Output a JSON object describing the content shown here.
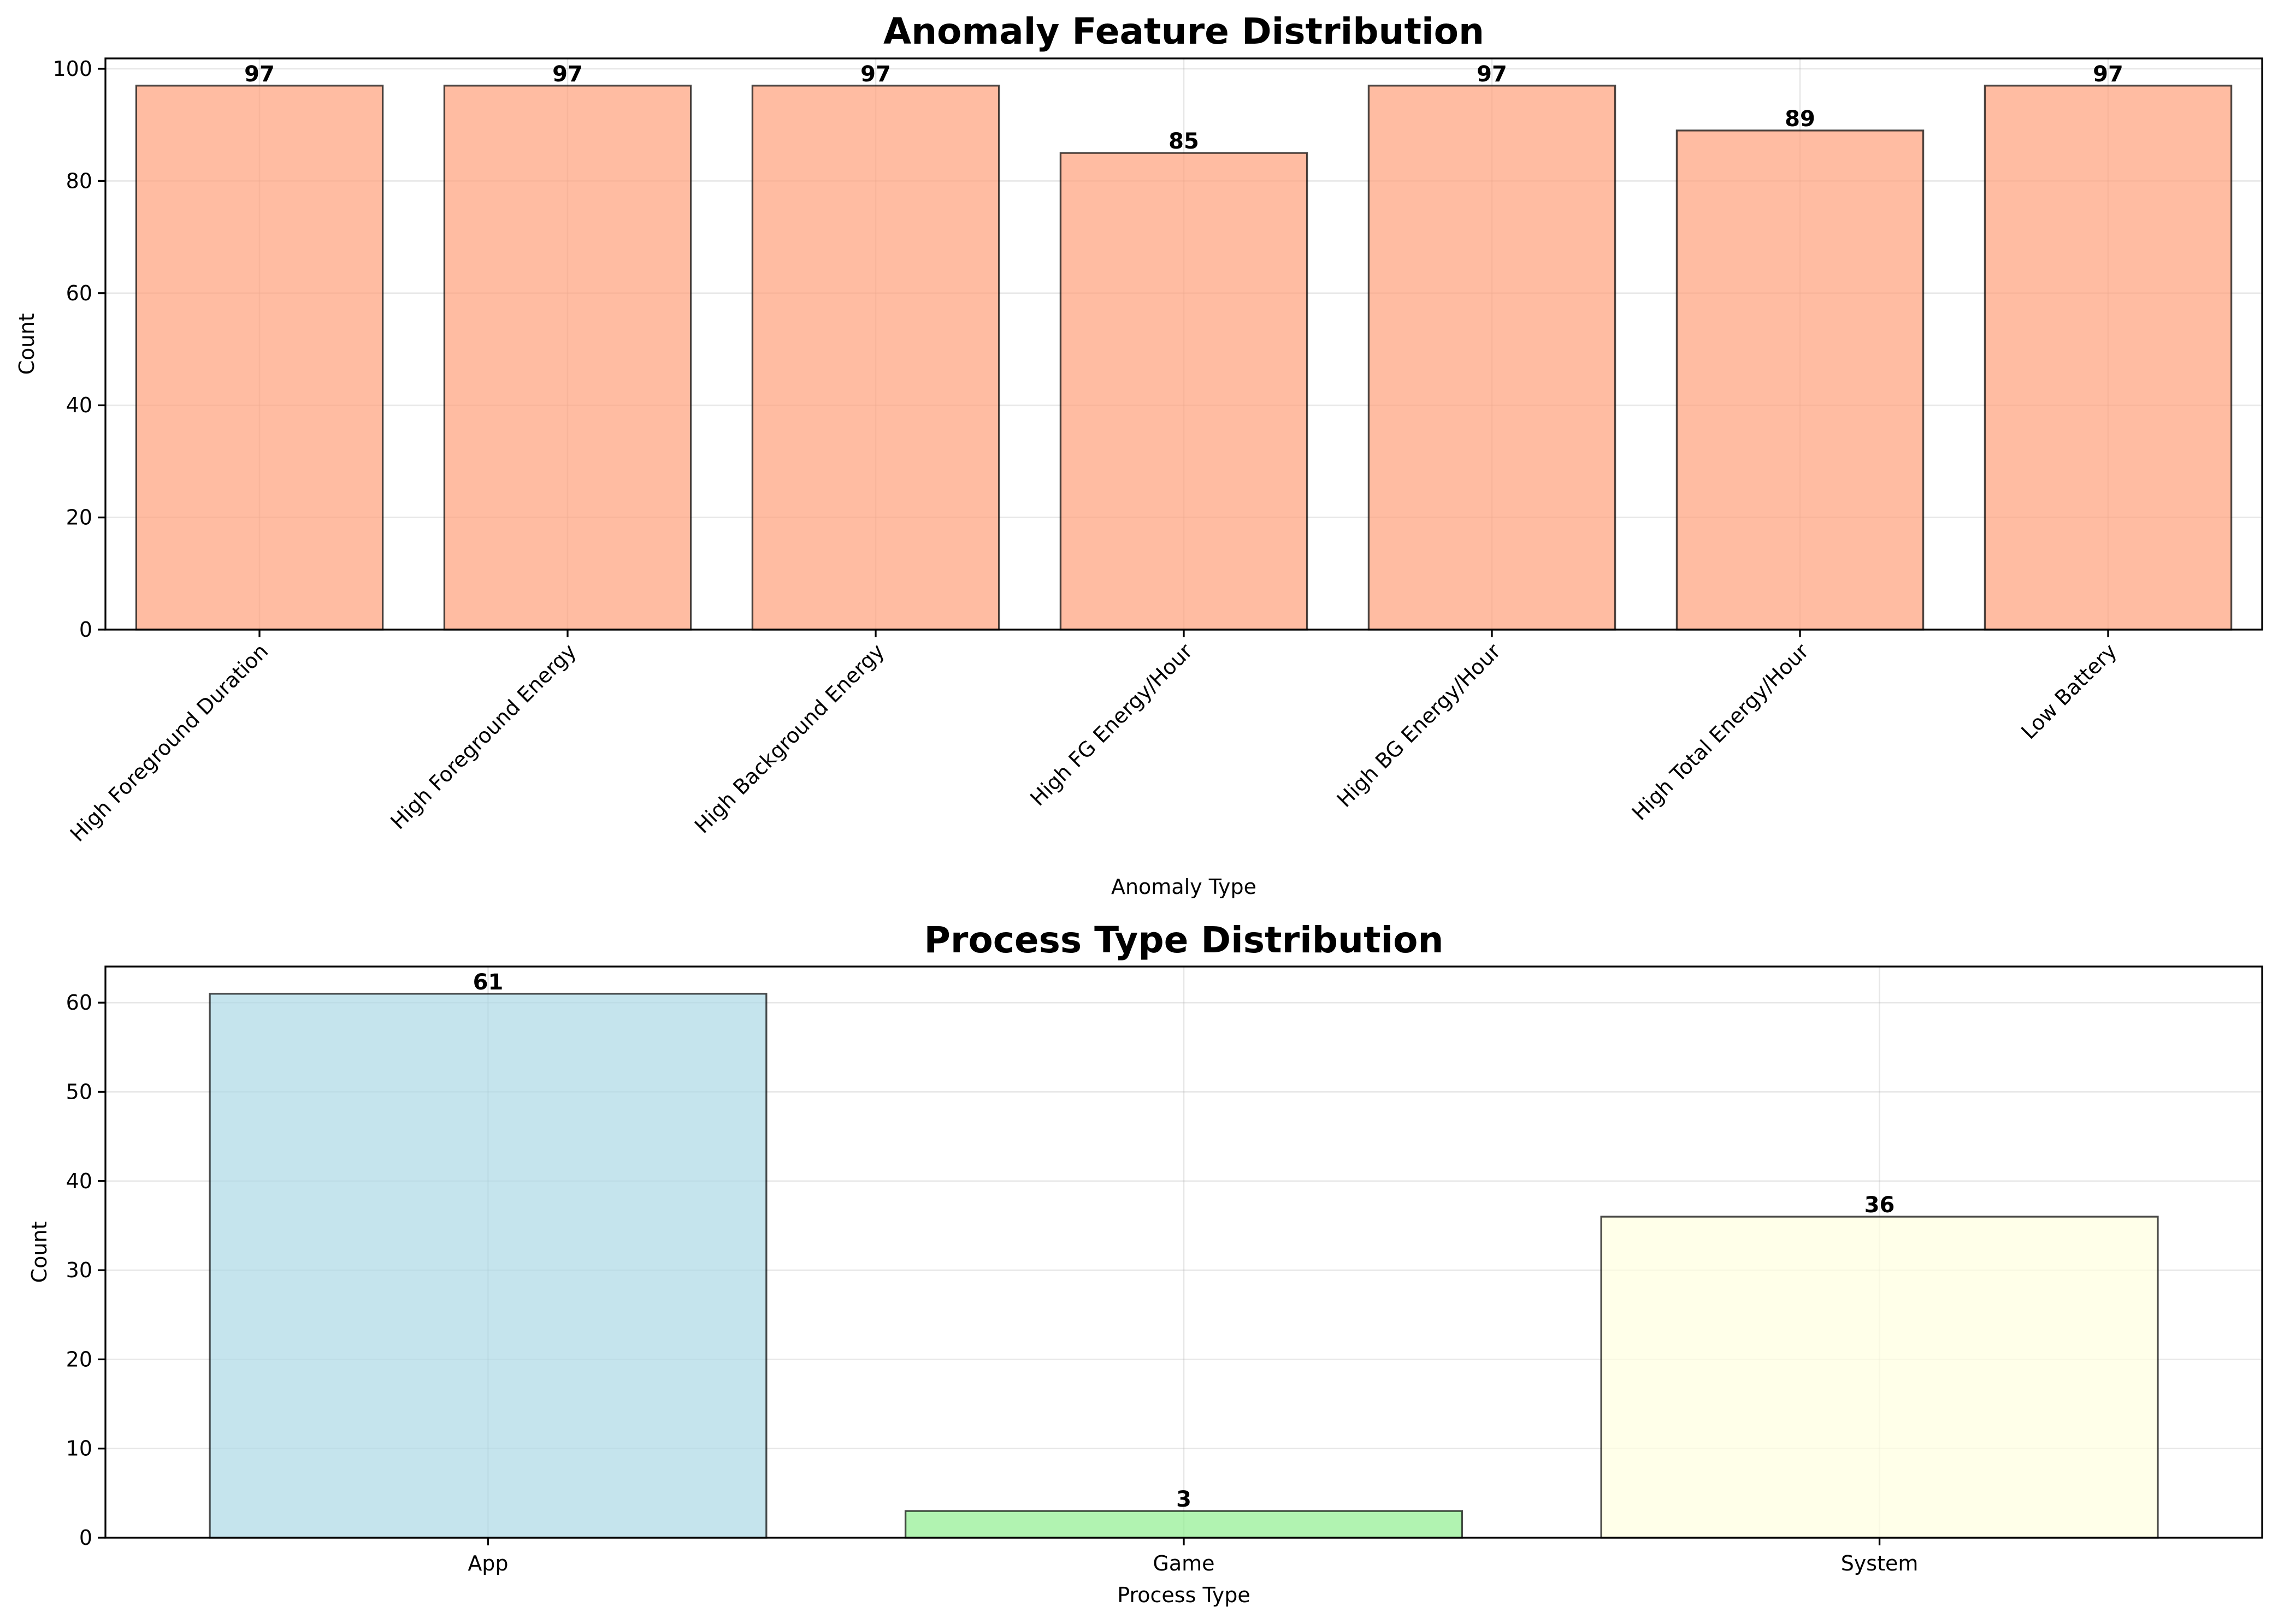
{
  "chart_data": [
    {
      "type": "bar",
      "title": "Anomaly Feature Distribution",
      "xlabel": "Anomaly Type",
      "ylabel": "Count",
      "categories": [
        "High Foreground Duration",
        "High Foreground Energy",
        "High Background Energy",
        "High FG Energy/Hour",
        "High BG Energy/Hour",
        "High Total Energy/Hour",
        "Low Battery"
      ],
      "values": [
        97,
        97,
        97,
        85,
        97,
        89,
        97
      ],
      "value_labels": [
        "97",
        "97",
        "97",
        "85",
        "97",
        "89",
        "97"
      ],
      "yticks": [
        0,
        20,
        40,
        60,
        80,
        100
      ],
      "ylim": [
        0,
        101.85
      ],
      "colors": [
        "#ffa07a"
      ],
      "grid": true,
      "xtick_rotation": 45
    },
    {
      "type": "bar",
      "title": "Process Type Distribution",
      "xlabel": "Process Type",
      "ylabel": "Count",
      "categories": [
        "App",
        "Game",
        "System"
      ],
      "values": [
        61,
        3,
        36
      ],
      "value_labels": [
        "61",
        "3",
        "36"
      ],
      "yticks": [
        0,
        10,
        20,
        30,
        40,
        50,
        60
      ],
      "ylim": [
        0,
        64.05
      ],
      "colors": [
        "#add8e6",
        "#90ee90",
        "#ffffe0"
      ],
      "grid": true,
      "xtick_rotation": 0
    }
  ]
}
